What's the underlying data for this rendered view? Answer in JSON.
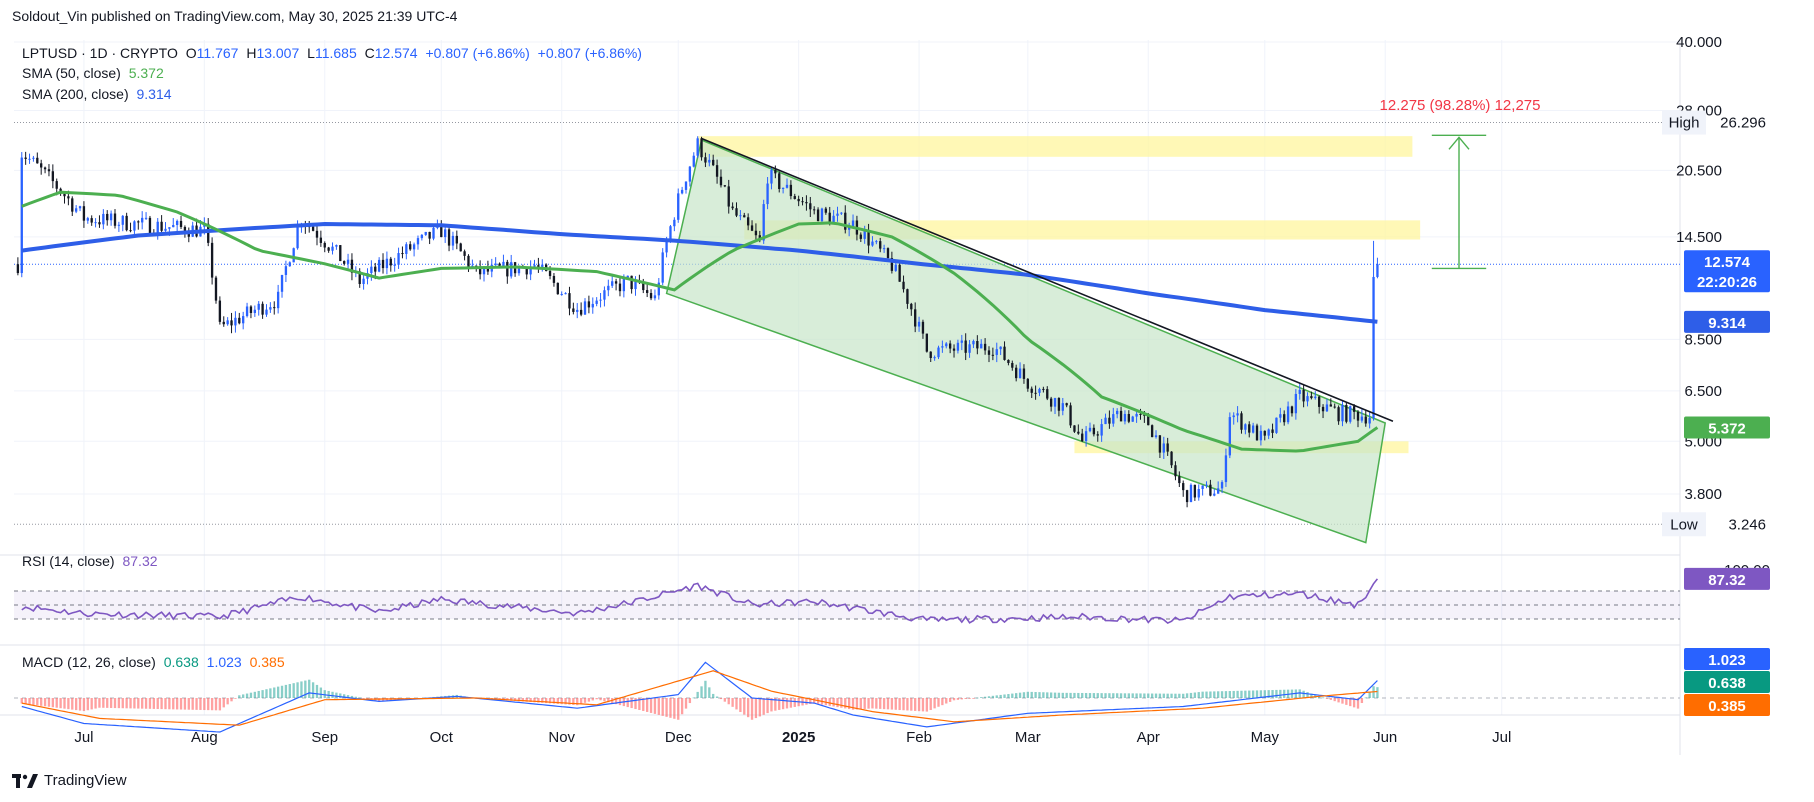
{
  "publisher": "Soldout_Vin published on TradingView.com, May 30, 2025 21:39 UTC-4",
  "logo_text": "TradingView",
  "legend": {
    "symbol": "LPTUSD · 1D · CRYPTO",
    "o_label": "O",
    "o": "11.767",
    "h_label": "H",
    "h": "13.007",
    "l_label": "L",
    "l": "11.685",
    "c_label": "C",
    "c": "12.574",
    "chg": "+0.807 (+6.86%)",
    "chg2": "+0.807 (+6.86%)",
    "sma50_label": "SMA (50, close)",
    "sma50_value": "5.372",
    "sma200_label": "SMA (200, close)",
    "sma200_value": "9.314"
  },
  "rsi_legend": {
    "label": "RSI (14, close)",
    "value": "87.32"
  },
  "macd_legend": {
    "label": "MACD (12, 26, close)",
    "v1": "0.638",
    "v2": "1.023",
    "v3": "0.385"
  },
  "measure_label": "12.275 (98.28%) 12,275",
  "high_label": "High",
  "high_value": "26.296",
  "low_label": "Low",
  "low_value": "3.246",
  "price_tag": {
    "price": "12.574",
    "countdown": "22:20:26"
  },
  "sma200_tag": "9.314",
  "sma50_tag": "5.372",
  "rsi_tag": "87.32",
  "rsi_axis_top": "100.00",
  "macd_axis_top": "2.000",
  "macd_tags": [
    "1.023",
    "0.638",
    "0.385"
  ],
  "colors": {
    "up": "#2962ff",
    "down": "#131722",
    "sma50": "#4caf50",
    "sma200": "#2e5ee8",
    "rsi": "#7e57c2",
    "macd": "#2962ff",
    "signal": "#ff6d00",
    "zone": "#fff59d",
    "channel": "#c8e6c9"
  },
  "chart_data": {
    "type": "candlestick",
    "title": "LPTUSD · 1D · CRYPTO",
    "x_ticks": [
      "Jul",
      "Aug",
      "Sep",
      "Oct",
      "Nov",
      "Dec",
      "2025",
      "Feb",
      "Mar",
      "Apr",
      "May",
      "Jun",
      "Jul"
    ],
    "y_ticks": [
      "40.000",
      "28.000",
      "20.500",
      "14.500",
      "8.500",
      "6.500",
      "5.000",
      "3.800"
    ],
    "y_scale": "log",
    "price_anchors": [
      [
        "2024-06-15",
        22.5
      ],
      [
        "2024-07-01",
        16.0
      ],
      [
        "2024-07-15",
        15.5
      ],
      [
        "2024-08-01",
        15.0
      ],
      [
        "2024-08-05",
        9.0
      ],
      [
        "2024-08-20",
        10.5
      ],
      [
        "2024-08-26",
        16.0
      ],
      [
        "2024-09-10",
        11.5
      ],
      [
        "2024-09-25",
        14.0
      ],
      [
        "2024-10-01",
        15.0
      ],
      [
        "2024-10-10",
        12.0
      ],
      [
        "2024-10-25",
        12.5
      ],
      [
        "2024-11-05",
        10.0
      ],
      [
        "2024-11-18",
        11.5
      ],
      [
        "2024-11-25",
        10.5
      ],
      [
        "2024-12-06",
        23.5
      ],
      [
        "2024-12-15",
        16.5
      ],
      [
        "2024-12-22",
        14.0
      ],
      [
        "2024-12-24",
        20.0
      ],
      [
        "2025-01-05",
        16.5
      ],
      [
        "2025-01-15",
        15.5
      ],
      [
        "2025-01-25",
        12.5
      ],
      [
        "2025-02-03",
        8.0
      ],
      [
        "2025-02-20",
        8.2
      ],
      [
        "2025-03-01",
        6.8
      ],
      [
        "2025-03-10",
        6.0
      ],
      [
        "2025-03-15",
        5.0
      ],
      [
        "2025-03-25",
        5.8
      ],
      [
        "2025-04-01",
        5.5
      ],
      [
        "2025-04-10",
        3.8
      ],
      [
        "2025-04-20",
        3.9
      ],
      [
        "2025-04-22",
        5.8
      ],
      [
        "2025-05-01",
        5.0
      ],
      [
        "2025-05-10",
        6.3
      ],
      [
        "2025-05-20",
        5.8
      ],
      [
        "2025-05-29",
        5.7
      ],
      [
        "2025-05-30",
        12.574
      ]
    ],
    "sma50_anchors": [
      [
        "2024-06-15",
        17.0
      ],
      [
        "2024-06-25",
        18.3
      ],
      [
        "2024-07-10",
        18.0
      ],
      [
        "2024-07-25",
        16.5
      ],
      [
        "2024-08-15",
        13.5
      ],
      [
        "2024-09-01",
        12.6
      ],
      [
        "2024-09-15",
        11.7
      ],
      [
        "2024-10-01",
        12.3
      ],
      [
        "2024-10-20",
        12.4
      ],
      [
        "2024-11-10",
        12.1
      ],
      [
        "2024-11-30",
        11.0
      ],
      [
        "2024-12-15",
        13.5
      ],
      [
        "2025-01-01",
        15.5
      ],
      [
        "2025-01-10",
        15.6
      ],
      [
        "2025-01-25",
        14.5
      ],
      [
        "2025-02-10",
        12.0
      ],
      [
        "2025-03-01",
        8.5
      ],
      [
        "2025-03-20",
        6.3
      ],
      [
        "2025-04-10",
        5.3
      ],
      [
        "2025-04-25",
        4.8
      ],
      [
        "2025-05-10",
        4.75
      ],
      [
        "2025-05-25",
        5.0
      ],
      [
        "2025-05-30",
        5.372
      ]
    ],
    "sma200_anchors": [
      [
        "2024-06-15",
        13.5
      ],
      [
        "2024-07-15",
        14.6
      ],
      [
        "2024-08-15",
        15.2
      ],
      [
        "2024-09-01",
        15.5
      ],
      [
        "2024-10-01",
        15.4
      ],
      [
        "2024-11-01",
        14.7
      ],
      [
        "2024-12-01",
        14.2
      ],
      [
        "2025-01-01",
        13.5
      ],
      [
        "2025-02-01",
        12.6
      ],
      [
        "2025-03-01",
        11.9
      ],
      [
        "2025-04-01",
        10.8
      ],
      [
        "2025-05-01",
        9.9
      ],
      [
        "2025-05-30",
        9.314
      ]
    ],
    "rsi_anchors": [
      [
        "2024-06-15",
        48
      ],
      [
        "2024-07-01",
        38
      ],
      [
        "2024-08-05",
        33
      ],
      [
        "2024-08-26",
        62
      ],
      [
        "2024-09-15",
        40
      ],
      [
        "2024-10-01",
        58
      ],
      [
        "2024-11-05",
        38
      ],
      [
        "2024-11-20",
        55
      ],
      [
        "2024-12-06",
        78
      ],
      [
        "2024-12-20",
        50
      ],
      [
        "2025-01-05",
        55
      ],
      [
        "2025-02-03",
        28
      ],
      [
        "2025-03-15",
        33
      ],
      [
        "2025-04-10",
        27
      ],
      [
        "2025-04-22",
        62
      ],
      [
        "2025-05-10",
        66
      ],
      [
        "2025-05-25",
        50
      ],
      [
        "2025-05-30",
        87.32
      ]
    ],
    "macd_anchors": [
      [
        "2024-06-15",
        -0.5
      ],
      [
        "2024-07-01",
        -1.5
      ],
      [
        "2024-08-05",
        -2.0
      ],
      [
        "2024-08-28",
        0.3
      ],
      [
        "2024-09-15",
        -0.2
      ],
      [
        "2024-10-05",
        0.1
      ],
      [
        "2024-11-05",
        -0.6
      ],
      [
        "2024-12-01",
        0.2
      ],
      [
        "2024-12-08",
        2.1
      ],
      [
        "2024-12-20",
        0.0
      ],
      [
        "2025-01-05",
        -0.3
      ],
      [
        "2025-01-15",
        -1.0
      ],
      [
        "2025-02-03",
        -1.7
      ],
      [
        "2025-03-01",
        -0.9
      ],
      [
        "2025-04-10",
        -0.5
      ],
      [
        "2025-05-10",
        0.3
      ],
      [
        "2025-05-25",
        -0.1
      ],
      [
        "2025-05-30",
        1.023
      ]
    ],
    "signal_anchors": [
      [
        "2024-06-15",
        -0.3
      ],
      [
        "2024-07-05",
        -1.2
      ],
      [
        "2024-08-10",
        -1.6
      ],
      [
        "2024-09-01",
        -0.1
      ],
      [
        "2024-10-10",
        0.0
      ],
      [
        "2024-11-10",
        -0.4
      ],
      [
        "2024-12-10",
        1.6
      ],
      [
        "2024-12-25",
        0.4
      ],
      [
        "2025-01-20",
        -0.8
      ],
      [
        "2025-02-10",
        -1.4
      ],
      [
        "2025-03-10",
        -1.0
      ],
      [
        "2025-04-15",
        -0.6
      ],
      [
        "2025-05-15",
        0.1
      ],
      [
        "2025-05-30",
        0.385
      ]
    ],
    "macd_hist_last": 0.638,
    "high": 26.296,
    "low": 3.246,
    "resistance_zones": [
      [
        22.0,
        24.5
      ],
      [
        14.3,
        15.8
      ],
      [
        4.7,
        5.0
      ]
    ],
    "measure": {
      "from": 12.3,
      "to": 24.6,
      "label": "12.275 (98.28%) 12,275"
    }
  }
}
